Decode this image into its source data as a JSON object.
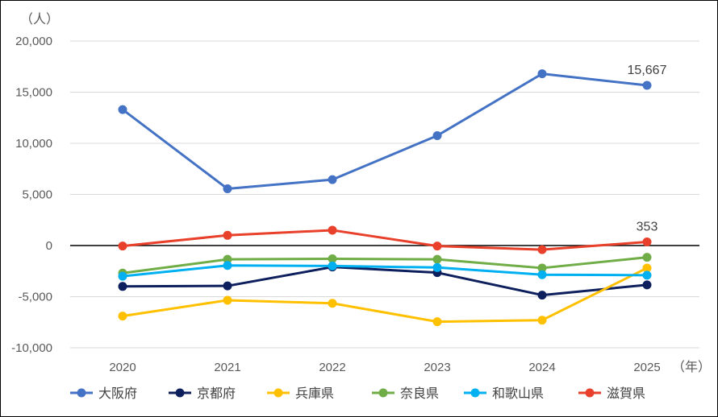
{
  "chart_data": {
    "type": "line",
    "y_unit_label": "（人）",
    "x_unit_label": "（年）",
    "categories": [
      "2020",
      "2021",
      "2022",
      "2023",
      "2024",
      "2025"
    ],
    "ylim": [
      -10000,
      20000
    ],
    "yticks": [
      20000,
      15000,
      10000,
      5000,
      0,
      -5000,
      -10000
    ],
    "ytick_labels": [
      "20,000",
      "15,000",
      "10,000",
      "5,000",
      "0",
      "-5,000",
      "-10,000"
    ],
    "grid": true,
    "legend_position": "bottom",
    "series": [
      {
        "name": "大阪府",
        "color": "#4472C4",
        "values": [
          13300,
          5550,
          6450,
          10750,
          16800,
          15667
        ]
      },
      {
        "name": "京都府",
        "color": "#0D1F5C",
        "values": [
          -4000,
          -3950,
          -2100,
          -2650,
          -4850,
          -3850
        ]
      },
      {
        "name": "兵庫県",
        "color": "#FFC000",
        "values": [
          -6900,
          -5350,
          -5650,
          -7450,
          -7300,
          -2200
        ]
      },
      {
        "name": "奈良県",
        "color": "#70AD47",
        "values": [
          -2700,
          -1350,
          -1300,
          -1350,
          -2200,
          -1150
        ]
      },
      {
        "name": "和歌山県",
        "color": "#00B0F0",
        "values": [
          -3000,
          -1950,
          -2000,
          -2150,
          -2850,
          -2900
        ]
      },
      {
        "name": "滋賀県",
        "color": "#E8402A",
        "values": [
          -50,
          1000,
          1500,
          -50,
          -400,
          353
        ]
      }
    ],
    "annotations": [
      {
        "series": "大阪府",
        "x": "2025",
        "text": "15,667"
      },
      {
        "series": "滋賀県",
        "x": "2025",
        "text": "353"
      }
    ]
  }
}
